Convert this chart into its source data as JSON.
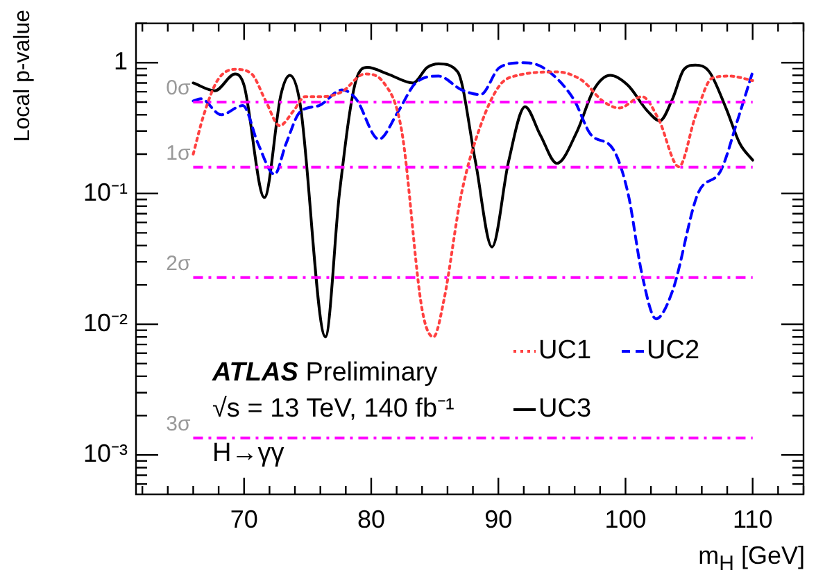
{
  "chart_data": {
    "type": "line",
    "xlabel": "m$_{H}$ [GeV]",
    "ylabel": "Local p-value",
    "annotations": [
      "ATLAS Preliminary",
      "√s = 13 TeV, 140 fb⁻¹",
      "H→γγ"
    ],
    "log": "y",
    "grid": false,
    "legend": "bottom right",
    "xlim": [
      61.5,
      114
    ],
    "ylim": [
      0.0005,
      2
    ],
    "xticks": [
      {
        "value": 62,
        "label": null
      },
      {
        "value": 64,
        "label": null
      },
      {
        "value": 66,
        "label": null
      },
      {
        "value": 68,
        "label": null
      },
      70,
      {
        "value": 72,
        "label": null
      },
      {
        "value": 74,
        "label": null
      },
      {
        "value": 76,
        "label": null
      },
      {
        "value": 78,
        "label": null
      },
      80,
      {
        "value": 82,
        "label": null
      },
      {
        "value": 84,
        "label": null
      },
      {
        "value": 86,
        "label": null
      },
      {
        "value": 88,
        "label": null
      },
      90,
      {
        "value": 92,
        "label": null
      },
      {
        "value": 94,
        "label": null
      },
      {
        "value": 96,
        "label": null
      },
      {
        "value": 98,
        "label": null
      },
      100,
      {
        "value": 102,
        "label": null
      },
      {
        "value": 104,
        "label": null
      },
      {
        "value": 106,
        "label": null
      },
      {
        "value": 108,
        "label": null
      },
      110,
      {
        "value": 112,
        "label": null
      },
      {
        "value": 114,
        "label": null
      }
    ],
    "yticks": [
      {
        "value": 0.0006,
        "label": null
      },
      {
        "value": 0.0007,
        "label": null
      },
      {
        "value": 0.0008,
        "label": null
      },
      {
        "value": 0.0009,
        "label": null
      },
      {
        "value": 0.001,
        "label": "10⁻³"
      },
      {
        "value": 0.002,
        "label": null
      },
      {
        "value": 0.003,
        "label": null
      },
      {
        "value": 0.004,
        "label": null
      },
      {
        "value": 0.005,
        "label": null
      },
      {
        "value": 0.006,
        "label": null
      },
      {
        "value": 0.007,
        "label": null
      },
      {
        "value": 0.008,
        "label": null
      },
      {
        "value": 0.009,
        "label": null
      },
      {
        "value": 0.01,
        "label": "10⁻²"
      },
      {
        "value": 0.02,
        "label": null
      },
      {
        "value": 0.03,
        "label": null
      },
      {
        "value": 0.04,
        "label": null
      },
      {
        "value": 0.05,
        "label": null
      },
      {
        "value": 0.06,
        "label": null
      },
      {
        "value": 0.07,
        "label": null
      },
      {
        "value": 0.08,
        "label": null
      },
      {
        "value": 0.09,
        "label": null
      },
      {
        "value": 0.1,
        "label": "10⁻¹"
      },
      {
        "value": 0.2,
        "label": null
      },
      {
        "value": 0.3,
        "label": null
      },
      {
        "value": 0.4,
        "label": null
      },
      {
        "value": 0.5,
        "label": null
      },
      {
        "value": 0.6,
        "label": null
      },
      {
        "value": 0.7,
        "label": null
      },
      {
        "value": 0.8,
        "label": null
      },
      {
        "value": 0.9,
        "label": null
      },
      1,
      {
        "value": 2,
        "label": null
      }
    ],
    "ref_lines": [
      {
        "axis": "y",
        "value": 0.5,
        "label": "0σ",
        "color": "#ff00ff",
        "line_style": "dashed"
      },
      {
        "axis": "y",
        "value": 0.1587,
        "label": "1σ",
        "color": "#ff00ff",
        "line_style": "dashed"
      },
      {
        "axis": "y",
        "value": 0.02275,
        "label": "2σ",
        "color": "#ff00ff",
        "line_style": "dashed"
      },
      {
        "axis": "y",
        "value": 0.00135,
        "label": "3σ",
        "color": "#ff00ff",
        "line_style": "dashed"
      }
    ],
    "series": [
      {
        "name": "UC1",
        "color": "#ff4040",
        "line_style": "dotted",
        "x": [
          66.0,
          66.8,
          67.9,
          69.3,
          70.6,
          71.7,
          72.8,
          73.9,
          74.8,
          76.2,
          77.7,
          79.5,
          81.0,
          82.4,
          84.0,
          84.9,
          85.7,
          87.1,
          88.6,
          90.1,
          91.5,
          94.6,
          96.6,
          98.2,
          99.5,
          101.3,
          102.6,
          104.2,
          105.5,
          106.8,
          108.2,
          110.0
        ],
        "values": [
          0.2,
          0.39,
          0.73,
          0.89,
          0.82,
          0.51,
          0.33,
          0.43,
          0.55,
          0.55,
          0.6,
          0.82,
          0.7,
          0.3,
          0.013,
          0.008,
          0.015,
          0.1,
          0.33,
          0.67,
          0.8,
          0.85,
          0.73,
          0.51,
          0.45,
          0.55,
          0.37,
          0.16,
          0.39,
          0.76,
          0.79,
          0.73
        ]
      },
      {
        "name": "UC2",
        "color": "#0000ff",
        "line_style": "dashed",
        "x": [
          66.0,
          66.6,
          68.2,
          69.9,
          71.1,
          72.4,
          73.3,
          74.4,
          75.9,
          77.7,
          78.8,
          80.6,
          82.1,
          83.5,
          85.3,
          87.1,
          88.6,
          90.1,
          91.9,
          93.5,
          95.9,
          97.3,
          99.0,
          100.2,
          101.3,
          102.4,
          103.7,
          105.7,
          107.5,
          108.8,
          110.0
        ],
        "values": [
          0.51,
          0.53,
          0.4,
          0.47,
          0.24,
          0.14,
          0.24,
          0.42,
          0.47,
          0.62,
          0.53,
          0.26,
          0.42,
          0.7,
          0.79,
          0.62,
          0.57,
          0.92,
          1.0,
          0.92,
          0.53,
          0.28,
          0.22,
          0.1,
          0.024,
          0.011,
          0.018,
          0.1,
          0.15,
          0.36,
          0.85
        ]
      },
      {
        "name": "UC3",
        "color": "#000000",
        "line_style": "solid",
        "x": [
          66.0,
          67.7,
          69.3,
          70.0,
          71.6,
          72.9,
          73.6,
          74.4,
          76.4,
          77.5,
          78.8,
          79.7,
          81.3,
          83.3,
          84.4,
          85.3,
          86.8,
          88.2,
          89.5,
          90.8,
          92.1,
          93.3,
          94.6,
          96.2,
          97.5,
          98.8,
          100.2,
          101.7,
          102.7,
          103.7,
          104.6,
          105.5,
          106.6,
          107.9,
          109.0,
          110.0
        ],
        "values": [
          0.7,
          0.61,
          0.82,
          0.67,
          0.093,
          0.57,
          0.8,
          0.49,
          0.008,
          0.1,
          0.73,
          0.92,
          0.82,
          0.7,
          0.92,
          0.98,
          0.85,
          0.175,
          0.039,
          0.175,
          0.46,
          0.28,
          0.17,
          0.3,
          0.62,
          0.8,
          0.67,
          0.43,
          0.36,
          0.53,
          0.89,
          0.96,
          0.85,
          0.45,
          0.24,
          0.18
        ]
      }
    ]
  }
}
